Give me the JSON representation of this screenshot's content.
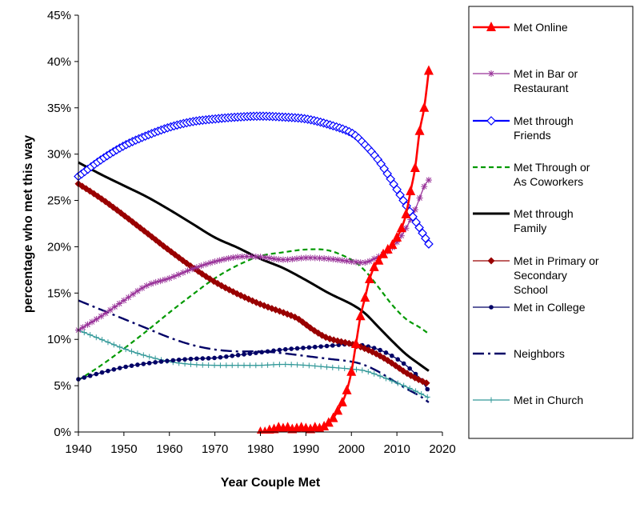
{
  "chart_data": {
    "type": "line",
    "title": "",
    "xlabel": "Year Couple Met",
    "ylabel": "percentage who met this way",
    "xlim": [
      1940,
      2020
    ],
    "ylim": [
      0,
      45
    ],
    "xticks": [
      "1940",
      "1950",
      "1960",
      "1970",
      "1980",
      "1990",
      "2000",
      "2010",
      "2020"
    ],
    "yticks": [
      "0%",
      "5%",
      "10%",
      "15%",
      "20%",
      "25%",
      "30%",
      "35%",
      "40%",
      "45%"
    ],
    "grid": false,
    "legend_position": "right",
    "series": [
      {
        "name": "Met Online",
        "color": "#ff0000",
        "marker": "triangle",
        "dash": "solid",
        "legend_lines": [
          "Met Online"
        ],
        "points": [
          [
            1980,
            0
          ],
          [
            1981,
            0
          ],
          [
            1982,
            0.2
          ],
          [
            1983,
            0.3
          ],
          [
            1984,
            0.5
          ],
          [
            1985,
            0.4
          ],
          [
            1986,
            0.5
          ],
          [
            1987,
            0.3
          ],
          [
            1988,
            0.4
          ],
          [
            1989,
            0.5
          ],
          [
            1990,
            0.4
          ],
          [
            1991,
            0.3
          ],
          [
            1992,
            0.5
          ],
          [
            1993,
            0.4
          ],
          [
            1994,
            0.6
          ],
          [
            1995,
            1.0
          ],
          [
            1996,
            1.5
          ],
          [
            1997,
            2.3
          ],
          [
            1998,
            3.2
          ],
          [
            1999,
            4.5
          ],
          [
            2000,
            6.5
          ],
          [
            2001,
            9.5
          ],
          [
            2002,
            12.5
          ],
          [
            2003,
            14.5
          ],
          [
            2004,
            16.5
          ],
          [
            2005,
            17.8
          ],
          [
            2006,
            18.5
          ],
          [
            2007,
            19.2
          ],
          [
            2008,
            19.7
          ],
          [
            2009,
            20.2
          ],
          [
            2010,
            21.0
          ],
          [
            2011,
            22.0
          ],
          [
            2012,
            23.5
          ],
          [
            2013,
            26.0
          ],
          [
            2014,
            28.5
          ],
          [
            2015,
            32.5
          ],
          [
            2016,
            35.0
          ],
          [
            2017,
            39.0
          ]
        ]
      },
      {
        "name": "Met in Bar or Restaurant",
        "color": "#993399",
        "marker": "star",
        "dash": "solid",
        "legend_lines": [
          "Met in Bar or",
          "Restaurant"
        ],
        "points": [
          [
            1940,
            11.0
          ],
          [
            1945,
            12.5
          ],
          [
            1950,
            14.2
          ],
          [
            1955,
            15.8
          ],
          [
            1960,
            16.6
          ],
          [
            1965,
            17.6
          ],
          [
            1970,
            18.4
          ],
          [
            1975,
            18.9
          ],
          [
            1980,
            18.9
          ],
          [
            1985,
            18.6
          ],
          [
            1990,
            18.8
          ],
          [
            1995,
            18.7
          ],
          [
            2000,
            18.4
          ],
          [
            2003,
            18.3
          ],
          [
            2005,
            18.7
          ],
          [
            2008,
            19.5
          ],
          [
            2010,
            20.5
          ],
          [
            2012,
            22.0
          ],
          [
            2014,
            24.0
          ],
          [
            2016,
            26.5
          ],
          [
            2017,
            27.2
          ]
        ]
      },
      {
        "name": "Met through Friends",
        "color": "#0000ff",
        "marker": "diamond-open",
        "dash": "solid",
        "legend_lines": [
          "Met through",
          "Friends"
        ],
        "points": [
          [
            1940,
            27.6
          ],
          [
            1945,
            29.4
          ],
          [
            1950,
            30.9
          ],
          [
            1955,
            32.0
          ],
          [
            1960,
            32.9
          ],
          [
            1965,
            33.5
          ],
          [
            1970,
            33.8
          ],
          [
            1975,
            34.0
          ],
          [
            1980,
            34.1
          ],
          [
            1985,
            34.0
          ],
          [
            1990,
            33.8
          ],
          [
            1995,
            33.2
          ],
          [
            2000,
            32.3
          ],
          [
            2003,
            31.0
          ],
          [
            2006,
            29.3
          ],
          [
            2009,
            27.0
          ],
          [
            2012,
            24.5
          ],
          [
            2015,
            22.0
          ],
          [
            2017,
            20.3
          ]
        ]
      },
      {
        "name": "Met Through or As Coworkers",
        "color": "#009900",
        "marker": "none",
        "dash": "dashed",
        "legend_lines": [
          "Met Through or",
          "As Coworkers"
        ],
        "points": [
          [
            1940,
            5.6
          ],
          [
            1945,
            7.2
          ],
          [
            1950,
            9.0
          ],
          [
            1955,
            10.9
          ],
          [
            1960,
            12.9
          ],
          [
            1965,
            14.8
          ],
          [
            1970,
            16.6
          ],
          [
            1975,
            18.0
          ],
          [
            1980,
            19.0
          ],
          [
            1985,
            19.4
          ],
          [
            1990,
            19.7
          ],
          [
            1995,
            19.6
          ],
          [
            2000,
            18.6
          ],
          [
            2003,
            17.4
          ],
          [
            2006,
            15.6
          ],
          [
            2009,
            13.7
          ],
          [
            2012,
            12.2
          ],
          [
            2015,
            11.3
          ],
          [
            2017,
            10.6
          ]
        ]
      },
      {
        "name": "Met through Family",
        "color": "#000000",
        "marker": "none",
        "dash": "solid",
        "legend_lines": [
          "Met through",
          "Family"
        ],
        "points": [
          [
            1940,
            29.1
          ],
          [
            1945,
            27.8
          ],
          [
            1950,
            26.6
          ],
          [
            1955,
            25.4
          ],
          [
            1960,
            24.0
          ],
          [
            1965,
            22.5
          ],
          [
            1970,
            21.0
          ],
          [
            1975,
            19.9
          ],
          [
            1980,
            18.7
          ],
          [
            1985,
            17.7
          ],
          [
            1990,
            16.4
          ],
          [
            1995,
            15.0
          ],
          [
            2000,
            13.8
          ],
          [
            2003,
            12.8
          ],
          [
            2006,
            11.3
          ],
          [
            2009,
            9.8
          ],
          [
            2012,
            8.4
          ],
          [
            2015,
            7.3
          ],
          [
            2017,
            6.6
          ]
        ]
      },
      {
        "name": "Met in Primary or Secondary School",
        "color": "#990000",
        "marker": "diamond-filled",
        "dash": "solid",
        "legend_lines": [
          "Met in Primary or",
          "Secondary",
          "School"
        ],
        "points": [
          [
            1940,
            26.8
          ],
          [
            1945,
            25.2
          ],
          [
            1950,
            23.4
          ],
          [
            1955,
            21.5
          ],
          [
            1960,
            19.6
          ],
          [
            1965,
            17.8
          ],
          [
            1970,
            16.2
          ],
          [
            1975,
            14.9
          ],
          [
            1980,
            13.8
          ],
          [
            1985,
            12.9
          ],
          [
            1988,
            12.3
          ],
          [
            1990,
            11.6
          ],
          [
            1992,
            10.9
          ],
          [
            1995,
            10.1
          ],
          [
            2000,
            9.5
          ],
          [
            2003,
            9.0
          ],
          [
            2006,
            8.3
          ],
          [
            2009,
            7.4
          ],
          [
            2012,
            6.4
          ],
          [
            2015,
            5.6
          ],
          [
            2017,
            5.2
          ]
        ]
      },
      {
        "name": "Met in College",
        "color": "#000066",
        "marker": "circle",
        "dash": "solid",
        "legend_lines": [
          "Met in College"
        ],
        "points": [
          [
            1940,
            5.7
          ],
          [
            1945,
            6.4
          ],
          [
            1950,
            7.0
          ],
          [
            1955,
            7.4
          ],
          [
            1960,
            7.7
          ],
          [
            1965,
            7.9
          ],
          [
            1970,
            8.0
          ],
          [
            1975,
            8.3
          ],
          [
            1980,
            8.6
          ],
          [
            1985,
            8.9
          ],
          [
            1990,
            9.1
          ],
          [
            1995,
            9.3
          ],
          [
            2000,
            9.5
          ],
          [
            2003,
            9.3
          ],
          [
            2006,
            8.9
          ],
          [
            2009,
            8.2
          ],
          [
            2012,
            7.2
          ],
          [
            2015,
            5.8
          ],
          [
            2017,
            4.4
          ]
        ]
      },
      {
        "name": "Neighbors",
        "color": "#000066",
        "marker": "none",
        "dash": "dashdot",
        "legend_lines": [
          "Neighbors"
        ],
        "points": [
          [
            1940,
            14.2
          ],
          [
            1945,
            13.2
          ],
          [
            1950,
            12.2
          ],
          [
            1955,
            11.2
          ],
          [
            1960,
            10.2
          ],
          [
            1965,
            9.4
          ],
          [
            1970,
            8.9
          ],
          [
            1975,
            8.7
          ],
          [
            1980,
            8.7
          ],
          [
            1985,
            8.5
          ],
          [
            1990,
            8.2
          ],
          [
            1995,
            7.9
          ],
          [
            2000,
            7.6
          ],
          [
            2003,
            7.2
          ],
          [
            2006,
            6.5
          ],
          [
            2009,
            5.6
          ],
          [
            2012,
            4.7
          ],
          [
            2015,
            3.9
          ],
          [
            2017,
            3.2
          ]
        ]
      },
      {
        "name": "Met in Church",
        "color": "#339999",
        "marker": "plus",
        "dash": "solid",
        "legend_lines": [
          "Met in Church"
        ],
        "points": [
          [
            1940,
            11.0
          ],
          [
            1945,
            10.0
          ],
          [
            1950,
            9.0
          ],
          [
            1955,
            8.2
          ],
          [
            1960,
            7.6
          ],
          [
            1965,
            7.3
          ],
          [
            1970,
            7.2
          ],
          [
            1975,
            7.2
          ],
          [
            1980,
            7.2
          ],
          [
            1985,
            7.3
          ],
          [
            1990,
            7.2
          ],
          [
            1995,
            7.0
          ],
          [
            2000,
            6.8
          ],
          [
            2003,
            6.6
          ],
          [
            2006,
            6.1
          ],
          [
            2009,
            5.5
          ],
          [
            2012,
            4.9
          ],
          [
            2015,
            4.2
          ],
          [
            2017,
            3.7
          ]
        ]
      }
    ]
  }
}
